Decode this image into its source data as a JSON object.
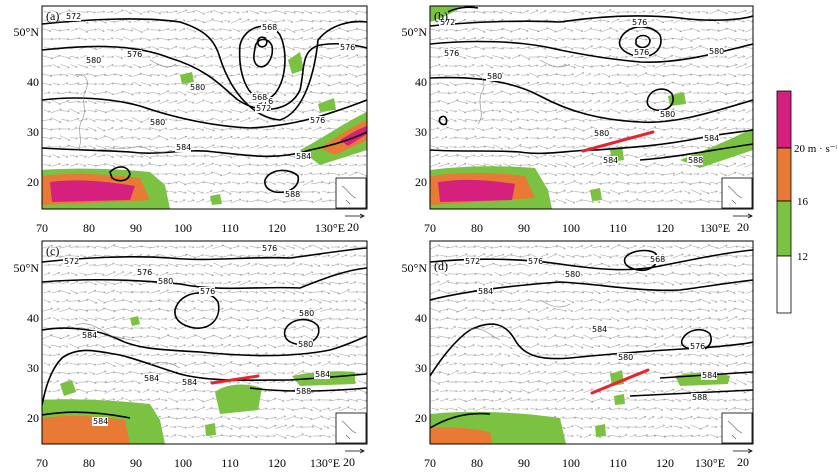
{
  "panels": [
    {
      "id": "a",
      "label": "(a)",
      "contours": [
        "572",
        "576",
        "568",
        "576",
        "580",
        "568",
        "572",
        "576",
        "580",
        "580",
        "584",
        "584",
        "588",
        "576"
      ],
      "has_red_line": false
    },
    {
      "id": "b",
      "label": "(b)",
      "contours": [
        "572",
        "576",
        "580",
        "584",
        "576",
        "580",
        "576",
        "580",
        "584",
        "588",
        "580"
      ],
      "has_red_line": true
    },
    {
      "id": "c",
      "label": "(c)",
      "contours": [
        "572",
        "576",
        "580",
        "576",
        "580",
        "584",
        "576",
        "580",
        "584",
        "588",
        "584",
        "584",
        "584"
      ],
      "has_red_line": true
    },
    {
      "id": "d",
      "label": "(d)",
      "contours": [
        "572",
        "576",
        "580",
        "584",
        "568",
        "576",
        "580",
        "584",
        "588",
        "584"
      ],
      "has_red_line": true
    }
  ],
  "axes": {
    "x_ticks": [
      "70",
      "80",
      "90",
      "100",
      "110",
      "120",
      "130°E"
    ],
    "y_ticks": [
      "50°N",
      "40",
      "30",
      "20"
    ],
    "vector_ref": "20"
  },
  "colorbar": {
    "labels": [
      "20 m · s⁻¹",
      "16",
      "12"
    ],
    "colors": [
      "#d6207e",
      "#e87a35",
      "#7bc242",
      "#ffffff"
    ]
  }
}
